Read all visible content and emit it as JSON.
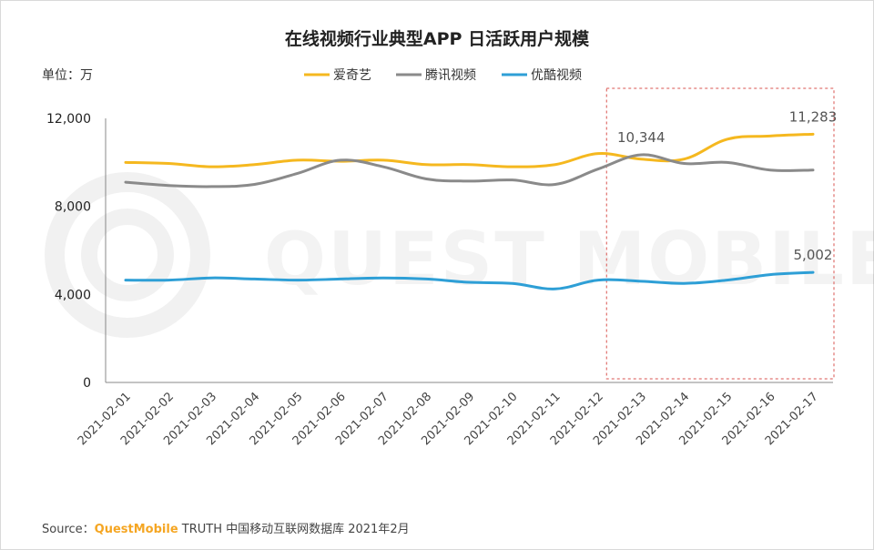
{
  "chart_data": {
    "type": "line",
    "title": "在线视频行业典型APP 日活跃用户规模",
    "ylabel": "单位：万",
    "ylim": [
      0,
      12000
    ],
    "yticks": [
      "0",
      "4,000",
      "8,000",
      "12,000"
    ],
    "yticks_values": [
      0,
      4000,
      8000,
      12000
    ],
    "categories": [
      "2021-02-01",
      "2021-02-02",
      "2021-02-03",
      "2021-02-04",
      "2021-02-05",
      "2021-02-06",
      "2021-02-07",
      "2021-02-08",
      "2021-02-09",
      "2021-02-10",
      "2021-02-11",
      "2021-02-12",
      "2021-02-13",
      "2021-02-14",
      "2021-02-15",
      "2021-02-16",
      "2021-02-17"
    ],
    "series": [
      {
        "name": "爱奇艺",
        "color": "#f5b81f",
        "values": [
          10000,
          9950,
          9800,
          9900,
          10100,
          10050,
          10100,
          9900,
          9900,
          9800,
          9900,
          10400,
          10150,
          10150,
          11050,
          11200,
          11283
        ]
      },
      {
        "name": "腾讯视频",
        "color": "#8a8a8a",
        "values": [
          9100,
          8950,
          8900,
          9000,
          9500,
          10100,
          9800,
          9250,
          9150,
          9200,
          9000,
          9700,
          10344,
          9950,
          10000,
          9650,
          9650
        ]
      },
      {
        "name": "优酷视频",
        "color": "#2e9fd6",
        "values": [
          4650,
          4650,
          4750,
          4700,
          4650,
          4700,
          4750,
          4700,
          4550,
          4500,
          4250,
          4650,
          4600,
          4500,
          4650,
          4900,
          5002
        ]
      }
    ],
    "annotations": [
      {
        "series": 1,
        "index": 12,
        "text": "10,344"
      },
      {
        "series": 0,
        "index": 16,
        "text": "11,283"
      },
      {
        "series": 2,
        "index": 16,
        "text": "5,002"
      }
    ],
    "highlight_range": [
      "2021-02-13",
      "2021-02-17"
    ]
  },
  "unit_label": "单位：万",
  "watermark": "QUEST MOBILE",
  "source": {
    "prefix": "Source：",
    "brand": "QuestMobile",
    "suffix": " TRUTH 中国移动互联网数据库 2021年2月"
  }
}
